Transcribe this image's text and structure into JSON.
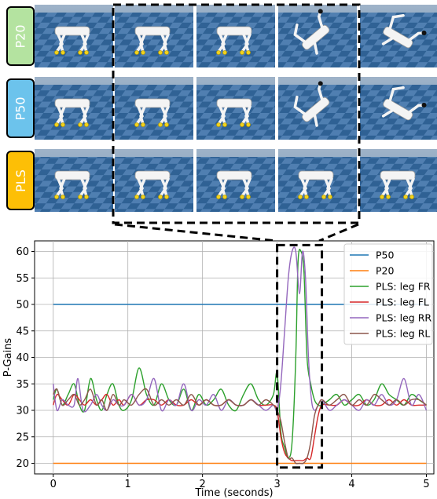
{
  "rows": [
    {
      "label": "P20",
      "color": "#b4e3a0",
      "frame_count": 5
    },
    {
      "label": "P50",
      "color": "#6cc3ec",
      "frame_count": 5
    },
    {
      "label": "PLS",
      "color": "#fdbf06",
      "frame_count": 5
    }
  ],
  "frame_colors": {
    "floor_dark": "#2b5e92",
    "floor_light": "#6e9ccc",
    "sky": "#a9b9c9",
    "robot": "#f2f2f2"
  },
  "chart_data": {
    "type": "line",
    "title": "",
    "xlabel": "Time (seconds)",
    "ylabel": "P-Gains",
    "xlim": [
      -0.25,
      5.1
    ],
    "ylim": [
      18,
      62
    ],
    "xticks": [
      0,
      1,
      2,
      3,
      4,
      5
    ],
    "yticks": [
      20,
      25,
      30,
      35,
      40,
      45,
      50,
      55,
      60
    ],
    "grid": true,
    "legend_position": "top-right",
    "highlight_box": {
      "x": [
        3.0,
        3.6
      ],
      "y": [
        19.2,
        61.2
      ],
      "style": "dashed"
    },
    "series": [
      {
        "name": "P50",
        "color": "#1f77b4",
        "x": [
          0,
          5
        ],
        "y": [
          50,
          50
        ]
      },
      {
        "name": "P20",
        "color": "#ff7f0e",
        "x": [
          0,
          5
        ],
        "y": [
          20,
          20
        ]
      },
      {
        "name": "PLS: leg FR",
        "color": "#2ca02c",
        "x": [
          0,
          0.05,
          0.12,
          0.2,
          0.28,
          0.35,
          0.42,
          0.5,
          0.58,
          0.65,
          0.72,
          0.8,
          0.88,
          0.95,
          1.05,
          1.15,
          1.25,
          1.35,
          1.45,
          1.55,
          1.65,
          1.75,
          1.85,
          1.95,
          2.05,
          2.15,
          2.25,
          2.35,
          2.45,
          2.55,
          2.65,
          2.75,
          2.85,
          2.95,
          3.0,
          3.05,
          3.1,
          3.15,
          3.2,
          3.25,
          3.28,
          3.32,
          3.36,
          3.4,
          3.45,
          3.5,
          3.55,
          3.6,
          3.7,
          3.8,
          3.9,
          4.0,
          4.1,
          4.2,
          4.3,
          4.4,
          4.5,
          4.6,
          4.7,
          4.8,
          4.9,
          5.0
        ],
        "y": [
          32,
          34,
          31,
          33,
          35,
          31,
          30,
          36,
          32,
          30,
          33,
          35,
          31,
          30,
          32,
          38,
          33,
          31,
          35,
          32,
          31,
          34,
          30,
          33,
          31,
          32,
          34,
          31,
          30,
          33,
          35,
          32,
          31,
          33,
          37,
          26,
          23,
          21,
          24,
          40,
          58,
          60,
          56,
          40,
          35,
          32,
          31,
          31,
          32,
          33,
          31,
          32,
          33,
          31,
          32,
          35,
          33,
          32,
          31,
          33,
          32,
          31
        ]
      },
      {
        "name": "PLS: leg FL",
        "color": "#d62728",
        "x": [
          0,
          0.05,
          0.12,
          0.2,
          0.28,
          0.35,
          0.42,
          0.5,
          0.58,
          0.65,
          0.72,
          0.8,
          0.88,
          0.95,
          1.05,
          1.15,
          1.25,
          1.35,
          1.45,
          1.55,
          1.65,
          1.75,
          1.85,
          1.95,
          2.05,
          2.15,
          2.25,
          2.35,
          2.45,
          2.55,
          2.65,
          2.75,
          2.85,
          2.95,
          3.0,
          3.05,
          3.1,
          3.15,
          3.2,
          3.25,
          3.3,
          3.35,
          3.4,
          3.45,
          3.5,
          3.55,
          3.6,
          3.7,
          3.8,
          3.9,
          4.0,
          4.1,
          4.2,
          4.3,
          4.4,
          4.5,
          4.6,
          4.7,
          4.8,
          4.9,
          5.0
        ],
        "y": [
          31,
          33,
          32,
          31,
          33,
          32,
          31,
          32,
          31,
          32,
          33,
          31,
          32,
          31,
          33,
          31,
          32,
          32,
          31,
          32,
          31,
          31,
          32,
          31,
          32,
          31,
          31,
          32,
          31,
          31,
          32,
          31,
          31,
          31,
          30,
          25,
          22,
          21,
          20.5,
          20.5,
          20.5,
          20.5,
          21,
          21,
          25,
          29,
          31,
          31,
          31,
          32,
          31,
          31,
          32,
          31,
          31,
          32,
          31,
          32,
          31,
          31,
          31
        ]
      },
      {
        "name": "PLS: leg RR",
        "color": "#9467bd",
        "x": [
          0,
          0.05,
          0.12,
          0.2,
          0.28,
          0.33,
          0.4,
          0.5,
          0.58,
          0.65,
          0.72,
          0.8,
          0.88,
          0.95,
          1.05,
          1.15,
          1.25,
          1.35,
          1.45,
          1.55,
          1.65,
          1.75,
          1.85,
          1.95,
          2.05,
          2.15,
          2.25,
          2.35,
          2.45,
          2.55,
          2.65,
          2.75,
          2.85,
          2.95,
          3.0,
          3.05,
          3.1,
          3.15,
          3.2,
          3.25,
          3.3,
          3.34,
          3.38,
          3.42,
          3.46,
          3.5,
          3.55,
          3.6,
          3.7,
          3.8,
          3.9,
          4.0,
          4.1,
          4.2,
          4.3,
          4.4,
          4.5,
          4.6,
          4.7,
          4.8,
          4.9,
          5.0
        ],
        "y": [
          35,
          30,
          32,
          31,
          31,
          36,
          30,
          31,
          33,
          31,
          30,
          32,
          31,
          31,
          33,
          31,
          32,
          36,
          30,
          32,
          31,
          35,
          30,
          32,
          31,
          33,
          30,
          32,
          31,
          31,
          32,
          31,
          30,
          31,
          30,
          35,
          45,
          55,
          60,
          60,
          52,
          60,
          55,
          40,
          32,
          30,
          31,
          32,
          30,
          31,
          32,
          31,
          30,
          32,
          31,
          33,
          31,
          32,
          36,
          31,
          33,
          30
        ]
      },
      {
        "name": "PLS: leg RL",
        "color": "#8c564b",
        "x": [
          0,
          0.05,
          0.12,
          0.2,
          0.28,
          0.35,
          0.42,
          0.5,
          0.58,
          0.65,
          0.72,
          0.8,
          0.88,
          0.95,
          1.05,
          1.15,
          1.25,
          1.35,
          1.45,
          1.55,
          1.65,
          1.75,
          1.85,
          1.95,
          2.05,
          2.15,
          2.25,
          2.35,
          2.45,
          2.55,
          2.65,
          2.75,
          2.85,
          2.95,
          3.0,
          3.05,
          3.1,
          3.15,
          3.2,
          3.25,
          3.3,
          3.35,
          3.4,
          3.45,
          3.5,
          3.55,
          3.6,
          3.7,
          3.8,
          3.9,
          4.0,
          4.1,
          4.2,
          4.3,
          4.4,
          4.5,
          4.6,
          4.7,
          4.8,
          4.9,
          5.0
        ],
        "y": [
          33,
          34,
          31,
          32,
          33,
          31,
          32,
          34,
          31,
          32,
          30,
          33,
          31,
          32,
          31,
          33,
          34,
          31,
          32,
          31,
          32,
          31,
          33,
          31,
          32,
          31,
          31,
          32,
          31,
          31,
          32,
          31,
          32,
          31,
          30,
          28,
          24,
          21,
          21,
          20,
          20,
          20,
          21,
          24,
          29,
          31,
          32,
          31,
          32,
          33,
          31,
          32,
          31,
          33,
          32,
          31,
          32,
          31,
          32,
          32,
          31
        ]
      }
    ]
  }
}
